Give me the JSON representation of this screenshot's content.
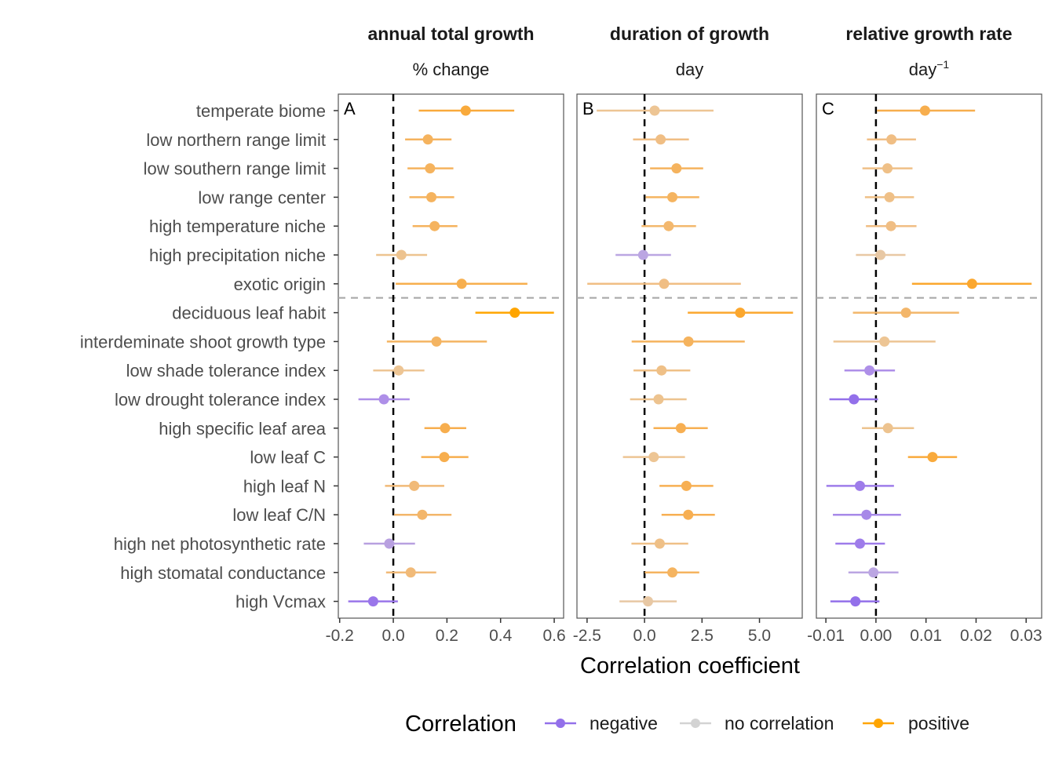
{
  "chart_data": {
    "type": "forest",
    "xlabel": "Correlation coefficient",
    "categories": [
      "temperate biome",
      "low northern range limit",
      "low southern range limit",
      "low range center",
      "high temperature niche",
      "high precipitation niche",
      "exotic origin",
      "deciduous leaf habit",
      "interdeminate shoot growth type",
      "low shade tolerance index",
      "low drought tolerance index",
      "high specific leaf area",
      "low leaf C",
      "high leaf N",
      "low leaf C/N",
      "high net photosynthetic rate",
      "high stomatal conductance",
      "high Vcmax"
    ],
    "group_separator_after_index": 6,
    "legend": {
      "title": "Correlation",
      "position": "bottom",
      "entries": [
        {
          "label": "negative",
          "color": "#9370EA"
        },
        {
          "label": "no correlation",
          "color": "#D3D3D3"
        },
        {
          "label": "positive",
          "color": "#FFA500"
        }
      ]
    },
    "panels": [
      {
        "tag": "A",
        "title": "annual total growth",
        "unit": "% change",
        "unit_sup": "",
        "xlim": [
          -0.205,
          0.635
        ],
        "ticks": [
          -0.2,
          0.0,
          0.2,
          0.4,
          0.6
        ],
        "tick_labels": [
          "-0.2",
          "0.0",
          "0.2",
          "0.4",
          "0.6"
        ],
        "points": [
          {
            "est": 0.27,
            "lo": 0.095,
            "hi": 0.451,
            "color": "#F9AA3C"
          },
          {
            "est": 0.129,
            "lo": 0.044,
            "hi": 0.217,
            "color": "#F5B35E"
          },
          {
            "est": 0.137,
            "lo": 0.053,
            "hi": 0.224,
            "color": "#F5B35E"
          },
          {
            "est": 0.142,
            "lo": 0.06,
            "hi": 0.227,
            "color": "#F5B35E"
          },
          {
            "est": 0.154,
            "lo": 0.072,
            "hi": 0.239,
            "color": "#F5B35E"
          },
          {
            "est": 0.03,
            "lo": -0.064,
            "hi": 0.126,
            "color": "#EDC38F"
          },
          {
            "est": 0.255,
            "lo": 0.009,
            "hi": 0.5,
            "color": "#F7AF4E"
          },
          {
            "est": 0.453,
            "lo": 0.306,
            "hi": 0.599,
            "color": "#FFA500"
          },
          {
            "est": 0.161,
            "lo": -0.024,
            "hi": 0.349,
            "color": "#F4B462"
          },
          {
            "est": 0.02,
            "lo": -0.075,
            "hi": 0.116,
            "color": "#EDC594"
          },
          {
            "est": -0.035,
            "lo": -0.13,
            "hi": 0.061,
            "color": "#AE8FE8"
          },
          {
            "est": 0.193,
            "lo": 0.116,
            "hi": 0.272,
            "color": "#F7AE4E"
          },
          {
            "est": 0.19,
            "lo": 0.104,
            "hi": 0.28,
            "color": "#F7AE4E"
          },
          {
            "est": 0.078,
            "lo": -0.031,
            "hi": 0.19,
            "color": "#F1BA78"
          },
          {
            "est": 0.108,
            "lo": 0.003,
            "hi": 0.217,
            "color": "#F3B66A"
          },
          {
            "est": -0.015,
            "lo": -0.11,
            "hi": 0.081,
            "color": "#B8A0E0"
          },
          {
            "est": 0.065,
            "lo": -0.027,
            "hi": 0.16,
            "color": "#F1BA78"
          },
          {
            "est": -0.075,
            "lo": -0.168,
            "hi": 0.017,
            "color": "#9A76EA"
          }
        ]
      },
      {
        "tag": "B",
        "title": "duration of growth",
        "unit": "day",
        "unit_sup": "",
        "xlim": [
          -2.94,
          6.86
        ],
        "ticks": [
          -2.5,
          0.0,
          2.5,
          5.0
        ],
        "tick_labels": [
          "-2.5",
          "0.0",
          "2.5",
          "5.0"
        ],
        "points": [
          {
            "est": 0.44,
            "lo": -2.08,
            "hi": 3.0,
            "color": "#EDC594"
          },
          {
            "est": 0.7,
            "lo": -0.5,
            "hi": 1.93,
            "color": "#F0BE84"
          },
          {
            "est": 1.39,
            "lo": 0.24,
            "hi": 2.55,
            "color": "#F5B35E"
          },
          {
            "est": 1.21,
            "lo": 0.05,
            "hi": 2.38,
            "color": "#F5B460"
          },
          {
            "est": 1.05,
            "lo": -0.13,
            "hi": 2.24,
            "color": "#F3B86E"
          },
          {
            "est": -0.06,
            "lo": -1.26,
            "hi": 1.15,
            "color": "#BBA6E2"
          },
          {
            "est": 0.85,
            "lo": -2.49,
            "hi": 4.19,
            "color": "#F0BE84"
          },
          {
            "est": 4.16,
            "lo": 1.88,
            "hi": 6.46,
            "color": "#FBA72E"
          },
          {
            "est": 1.91,
            "lo": -0.56,
            "hi": 4.36,
            "color": "#F5B35E"
          },
          {
            "est": 0.74,
            "lo": -0.48,
            "hi": 1.99,
            "color": "#EFC087"
          },
          {
            "est": 0.61,
            "lo": -0.63,
            "hi": 1.83,
            "color": "#EDC38F"
          },
          {
            "est": 1.58,
            "lo": 0.39,
            "hi": 2.75,
            "color": "#F7AF52"
          },
          {
            "est": 0.4,
            "lo": -0.94,
            "hi": 1.76,
            "color": "#EDC594"
          },
          {
            "est": 1.82,
            "lo": 0.65,
            "hi": 2.99,
            "color": "#F7AF52"
          },
          {
            "est": 1.9,
            "lo": 0.74,
            "hi": 3.06,
            "color": "#F7AF52"
          },
          {
            "est": 0.66,
            "lo": -0.57,
            "hi": 1.9,
            "color": "#EFC087"
          },
          {
            "est": 1.21,
            "lo": 0.01,
            "hi": 2.38,
            "color": "#F5B460"
          },
          {
            "est": 0.15,
            "lo": -1.09,
            "hi": 1.4,
            "color": "#E8C8A4"
          }
        ]
      },
      {
        "tag": "C",
        "title": "relative growth rate",
        "unit": "day",
        "unit_sup": "−1",
        "xlim": [
          -0.0119,
          0.0331
        ],
        "ticks": [
          -0.01,
          0.0,
          0.01,
          0.02,
          0.03
        ],
        "tick_labels": [
          "-0.01",
          "0.00",
          "0.01",
          "0.02",
          "0.03"
        ],
        "points": [
          {
            "est": 0.0098,
            "lo": 0.0002,
            "hi": 0.0198,
            "color": "#F7AE4E"
          },
          {
            "est": 0.0031,
            "lo": -0.0018,
            "hi": 0.008,
            "color": "#F0BE84"
          },
          {
            "est": 0.0023,
            "lo": -0.0027,
            "hi": 0.0073,
            "color": "#EFC087"
          },
          {
            "est": 0.0027,
            "lo": -0.0022,
            "hi": 0.0076,
            "color": "#EFC087"
          },
          {
            "est": 0.003,
            "lo": -0.002,
            "hi": 0.0081,
            "color": "#F0BE84"
          },
          {
            "est": 0.0009,
            "lo": -0.004,
            "hi": 0.0059,
            "color": "#E8C8A4"
          },
          {
            "est": 0.0192,
            "lo": 0.0072,
            "hi": 0.0311,
            "color": "#FBA72E"
          },
          {
            "est": 0.006,
            "lo": -0.0046,
            "hi": 0.0166,
            "color": "#F3B66A"
          },
          {
            "est": 0.0017,
            "lo": -0.0085,
            "hi": 0.0119,
            "color": "#EDC594"
          },
          {
            "est": -0.0013,
            "lo": -0.0063,
            "hi": 0.0038,
            "color": "#AE8FE8"
          },
          {
            "est": -0.0044,
            "lo": -0.0093,
            "hi": 0.0004,
            "color": "#9370EA"
          },
          {
            "est": 0.0024,
            "lo": -0.0028,
            "hi": 0.0076,
            "color": "#EDC38F"
          },
          {
            "est": 0.0113,
            "lo": 0.0064,
            "hi": 0.0162,
            "color": "#F9AA3C"
          },
          {
            "est": -0.0032,
            "lo": -0.0099,
            "hi": 0.0036,
            "color": "#9E7CEA"
          },
          {
            "est": -0.0019,
            "lo": -0.0086,
            "hi": 0.005,
            "color": "#A789E8"
          },
          {
            "est": -0.0032,
            "lo": -0.0081,
            "hi": 0.0018,
            "color": "#9E7CEA"
          },
          {
            "est": -0.0005,
            "lo": -0.0055,
            "hi": 0.0045,
            "color": "#BBA6E2"
          },
          {
            "est": -0.0041,
            "lo": -0.0091,
            "hi": 0.0007,
            "color": "#9370EA"
          }
        ]
      }
    ]
  }
}
